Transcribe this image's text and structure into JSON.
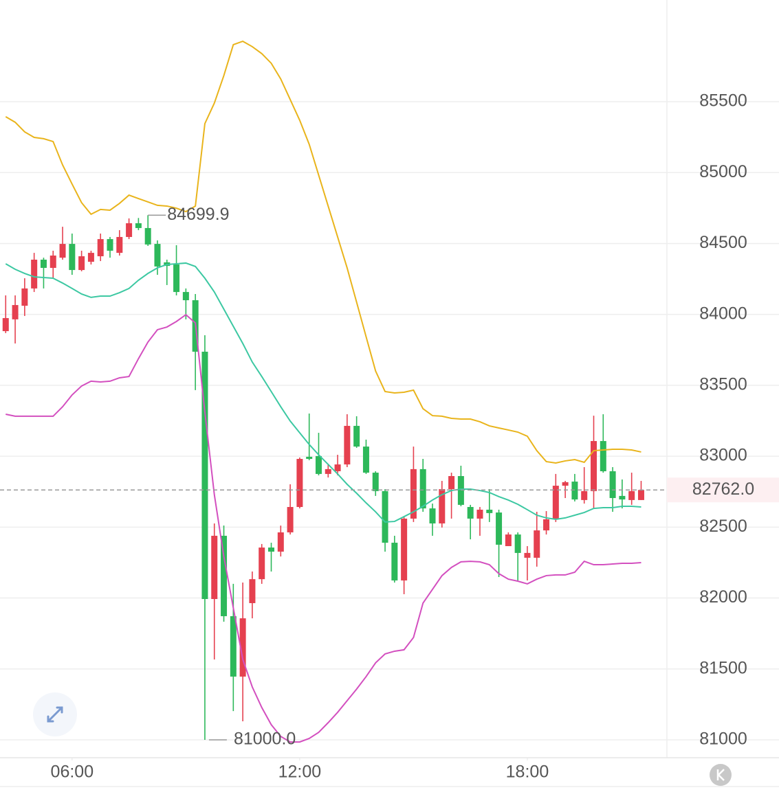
{
  "chart_data": {
    "type": "candlestick",
    "xlim": [
      4.1,
      21.68
    ],
    "xticks": [
      {
        "value": 6,
        "label": "06:00"
      },
      {
        "value": 12,
        "label": "12:00"
      },
      {
        "value": 18,
        "label": "18:00"
      }
    ],
    "ylim": [
      80874,
      86217
    ],
    "yticks": [
      81000,
      81500,
      82000,
      82500,
      83000,
      83500,
      84000,
      84500,
      85000,
      85500
    ],
    "grid": true,
    "up_color": "#e5404f",
    "down_color": "#2db85a",
    "candles": {
      "x": [
        4.25,
        4.5,
        4.75,
        5,
        5.25,
        5.5,
        5.75,
        6,
        6.25,
        6.5,
        6.75,
        7,
        7.25,
        7.5,
        7.75,
        8,
        8.25,
        8.5,
        8.75,
        9,
        9.25,
        9.5,
        9.75,
        10,
        10.25,
        10.5,
        10.75,
        11,
        11.25,
        11.5,
        11.75,
        12,
        12.25,
        12.5,
        12.75,
        13,
        13.25,
        13.5,
        13.75,
        14,
        14.25,
        14.5,
        14.75,
        15,
        15.25,
        15.5,
        15.75,
        16,
        16.25,
        16.5,
        16.75,
        17,
        17.25,
        17.5,
        17.75,
        18,
        18.25,
        18.5,
        18.75,
        19,
        19.25,
        19.5,
        19.75,
        20,
        20.25,
        20.5,
        20.75,
        21
      ],
      "open": [
        83882,
        83965,
        84061,
        84183,
        84386,
        84328,
        84400,
        84497,
        84313,
        84371,
        84410,
        84531,
        84434,
        84546,
        84643,
        84609,
        84497,
        84367,
        84352,
        84158,
        84100,
        83737,
        81993,
        82439,
        81872,
        81446,
        81964,
        82133,
        82356,
        82327,
        82463,
        82642,
        82996,
        83001,
        82875,
        82894,
        82942,
        83214,
        83068,
        82884,
        82754,
        82390,
        82124,
        82560,
        82909,
        82632,
        82526,
        82768,
        82860,
        82642,
        82560,
        82623,
        82603,
        82366,
        82448,
        82284,
        82284,
        82477,
        82555,
        82792,
        82821,
        82691,
        82754,
        83107,
        82894,
        82720,
        82691,
        82691
      ],
      "high": [
        84134,
        84134,
        84255,
        84434,
        84400,
        84449,
        84618,
        84570,
        84449,
        84449,
        84570,
        84546,
        84594,
        84677,
        84680,
        84699.9,
        84522,
        84386,
        84488,
        84183,
        84144,
        83853,
        82526,
        82511,
        82100,
        82109,
        82187,
        82381,
        82390,
        82511,
        82802,
        82991,
        83301,
        83165,
        82947,
        83010,
        83296,
        83282,
        83117,
        82894,
        82768,
        82439,
        82574,
        83068,
        82981,
        82666,
        82826,
        82884,
        82933,
        82657,
        82642,
        82768,
        82623,
        82463,
        82463,
        82366,
        82608,
        82613,
        82875,
        82826,
        82875,
        82923,
        83286,
        83296,
        82923,
        82836,
        82884,
        82826
      ],
      "low": [
        83868,
        83795,
        83989,
        84158,
        84183,
        84255,
        84386,
        84279,
        84304,
        84352,
        84376,
        84400,
        84415,
        84531,
        84594,
        84483,
        84279,
        84207,
        84134,
        83965,
        83466,
        81000,
        81567,
        81833,
        81203,
        81131,
        81857,
        82100,
        82187,
        82293,
        82448,
        82632,
        82972,
        82865,
        82850,
        82865,
        82923,
        83059,
        82875,
        82720,
        82327,
        82109,
        82027,
        82536,
        82608,
        82439,
        82497,
        82560,
        82647,
        82414,
        82439,
        82536,
        82148,
        82366,
        82124,
        82124,
        82221,
        82448,
        82536,
        82705,
        82681,
        82666,
        82632,
        82884,
        82608,
        82632,
        82657,
        82691
      ],
      "close": [
        83974,
        84066,
        84183,
        84386,
        84328,
        84415,
        84497,
        84313,
        84410,
        84434,
        84531,
        84449,
        84546,
        84643,
        84609,
        84493,
        84338,
        84342,
        84158,
        84100,
        83737,
        81993,
        82439,
        81872,
        81446,
        81857,
        82133,
        82356,
        82327,
        82463,
        82642,
        82981,
        82981,
        82875,
        82909,
        82942,
        83214,
        83068,
        82884,
        82754,
        82390,
        82124,
        82560,
        82909,
        82632,
        82526,
        82768,
        82860,
        82657,
        82560,
        82623,
        82599,
        82376,
        82448,
        82318,
        82318,
        82477,
        82555,
        82792,
        82817,
        82695,
        82754,
        83107,
        82894,
        82705,
        82695,
        82754,
        82762
      ]
    },
    "bands": {
      "upper": {
        "color": "#e9b41b",
        "values": [
          85394,
          85355,
          85287,
          85248,
          85239,
          85219,
          85054,
          84919,
          84788,
          84706,
          84740,
          84735,
          84783,
          84841,
          84817,
          84793,
          84769,
          84764,
          84749,
          84725,
          84764,
          85345,
          85490,
          85684,
          85902,
          85926,
          85888,
          85839,
          85771,
          85660,
          85515,
          85369,
          85200,
          84982,
          84764,
          84546,
          84328,
          84086,
          83843,
          83601,
          83456,
          83446,
          83451,
          83466,
          83335,
          83286,
          83282,
          83267,
          83262,
          83262,
          83243,
          83214,
          83199,
          83185,
          83170,
          83141,
          83039,
          82962,
          82952,
          82967,
          82976,
          82957,
          83039,
          83044,
          83049,
          83049,
          83044,
          83030
        ]
      },
      "middle": {
        "color": "#3cc8a2",
        "values": [
          84357,
          84318,
          84289,
          84265,
          84260,
          84255,
          84221,
          84183,
          84144,
          84120,
          84129,
          84129,
          84153,
          84183,
          84241,
          84289,
          84328,
          84352,
          84357,
          84362,
          84338,
          84255,
          84158,
          84037,
          83916,
          83795,
          83664,
          83562,
          83456,
          83349,
          83248,
          83165,
          83083,
          83010,
          82942,
          82875,
          82802,
          82739,
          82671,
          82608,
          82536,
          82540,
          82574,
          82608,
          82647,
          82691,
          82729,
          82758,
          82768,
          82768,
          82758,
          82744,
          82715,
          82691,
          82661,
          82623,
          82584,
          82565,
          82555,
          82565,
          82584,
          82603,
          82632,
          82637,
          82637,
          82647,
          82647,
          82642
        ]
      },
      "lower": {
        "color": "#d34fbf",
        "values": [
          83296,
          83282,
          83282,
          83282,
          83282,
          83282,
          83349,
          83432,
          83495,
          83529,
          83524,
          83529,
          83553,
          83562,
          83688,
          83805,
          83892,
          83911,
          83950,
          83998,
          83940,
          83311,
          82729,
          82293,
          81930,
          81567,
          81373,
          81228,
          81107,
          81024,
          80985,
          80985,
          81010,
          81053,
          81121,
          81194,
          81276,
          81358,
          81446,
          81543,
          81606,
          81625,
          81635,
          81722,
          81964,
          82061,
          82158,
          82216,
          82255,
          82259,
          82255,
          82235,
          82172,
          82133,
          82119,
          82100,
          82133,
          82158,
          82163,
          82163,
          82182,
          82259,
          82235,
          82235,
          82240,
          82245,
          82245,
          82250
        ]
      }
    },
    "high_label": {
      "value": 84699.9,
      "label": "84699.9"
    },
    "low_label": {
      "value": 81000,
      "label": "81000.0"
    },
    "last_price": {
      "value": 82762,
      "label": "82762.0"
    }
  }
}
